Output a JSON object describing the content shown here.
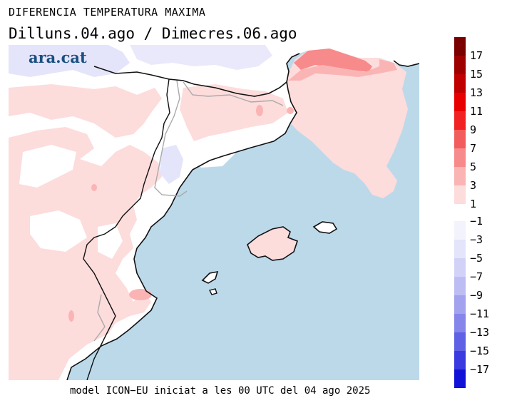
{
  "title": "DIFERENCIA TEMPERATURA MAXIMA",
  "subtitle": "Dilluns.04.ago / Dimecres.06.ago",
  "footer": "model ICON−EU iniciat a les 00 UTC del 04 ago 2025",
  "logo": "ara.cat",
  "colors": {
    "sea": "#bcd9ea",
    "land_white": "#ffffff",
    "warm_light": "#fddcdc",
    "warm_mid": "#fbb4b4",
    "warm_strong": "#f78a8a",
    "cool_light": "#e9e9fb",
    "coast": "#111111",
    "border": "#aaaaaa"
  },
  "legend": {
    "positive": [
      {
        "label": "1",
        "color": "#fddcdc"
      },
      {
        "label": "3",
        "color": "#fbb4b4"
      },
      {
        "label": "5",
        "color": "#f78a8a"
      },
      {
        "label": "7",
        "color": "#f25c5c"
      },
      {
        "label": "9",
        "color": "#f22222"
      },
      {
        "label": "11",
        "color": "#e80000"
      },
      {
        "label": "13",
        "color": "#c00000"
      },
      {
        "label": "15",
        "color": "#9e0000"
      },
      {
        "label": "17",
        "color": "#7a0000"
      }
    ],
    "negative": [
      {
        "label": "−1",
        "color": "#f3f3fd"
      },
      {
        "label": "−3",
        "color": "#e4e4fb"
      },
      {
        "label": "−5",
        "color": "#d2d2f8"
      },
      {
        "label": "−7",
        "color": "#bdbdf4"
      },
      {
        "label": "−9",
        "color": "#a2a2ee"
      },
      {
        "label": "−11",
        "color": "#8585ea"
      },
      {
        "label": "−13",
        "color": "#6060e6"
      },
      {
        "label": "−15",
        "color": "#3a3ae0"
      },
      {
        "label": "−17",
        "color": "#1111d8"
      }
    ]
  }
}
